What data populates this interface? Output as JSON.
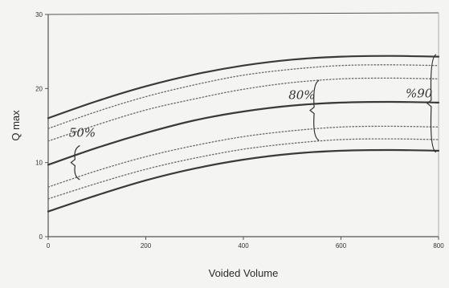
{
  "chart_data": {
    "type": "line",
    "xlabel": "Voided Volume",
    "ylabel": "Q max",
    "xlim": [
      0,
      800
    ],
    "ylim": [
      0,
      30
    ],
    "x_ticks": [
      0,
      200,
      400,
      600,
      800
    ],
    "y_ticks": [
      0,
      10,
      20,
      30
    ],
    "grid": false,
    "x": [
      0,
      100,
      200,
      300,
      400,
      500,
      600,
      700,
      800
    ],
    "series": [
      {
        "style": "solid",
        "values": [
          16.0,
          18.3,
          20.3,
          21.9,
          23.1,
          23.9,
          24.3,
          24.4,
          24.3
        ]
      },
      {
        "style": "dotted",
        "values": [
          14.6,
          16.9,
          18.9,
          20.5,
          21.8,
          22.6,
          23.1,
          23.2,
          23.1
        ]
      },
      {
        "style": "dotted",
        "values": [
          12.9,
          15.1,
          17.1,
          18.6,
          19.9,
          20.8,
          21.3,
          21.4,
          21.3
        ]
      },
      {
        "style": "solid",
        "values": [
          9.7,
          12.0,
          14.0,
          15.7,
          16.9,
          17.7,
          18.1,
          18.2,
          18.1
        ]
      },
      {
        "style": "dotted",
        "values": [
          6.7,
          8.9,
          10.8,
          12.3,
          13.5,
          14.3,
          14.8,
          14.9,
          14.8
        ]
      },
      {
        "style": "dotted",
        "values": [
          5.1,
          7.2,
          9.1,
          10.6,
          11.8,
          12.6,
          13.1,
          13.2,
          13.1
        ]
      },
      {
        "style": "solid",
        "values": [
          3.4,
          5.6,
          7.6,
          9.2,
          10.4,
          11.2,
          11.6,
          11.7,
          11.6
        ]
      }
    ],
    "annotations": [
      {
        "text": "50%",
        "x": 70,
        "y": 13.5
      },
      {
        "text": "80%",
        "x": 520,
        "y": 18.6
      },
      {
        "text": "%90",
        "x": 760,
        "y": 18.8
      }
    ],
    "brackets": [
      {
        "x": 55,
        "y_top": 12.3,
        "y_bottom": 7.7
      },
      {
        "x": 545,
        "y_top": 21.1,
        "y_bottom": 13.0
      },
      {
        "x": 785,
        "y_top": 24.6,
        "y_bottom": 11.4
      }
    ],
    "colors": {
      "line": "#3a3a3a",
      "dotted": "#6a6a6a",
      "axis": "#555555",
      "background": "#f4f4f2"
    }
  }
}
